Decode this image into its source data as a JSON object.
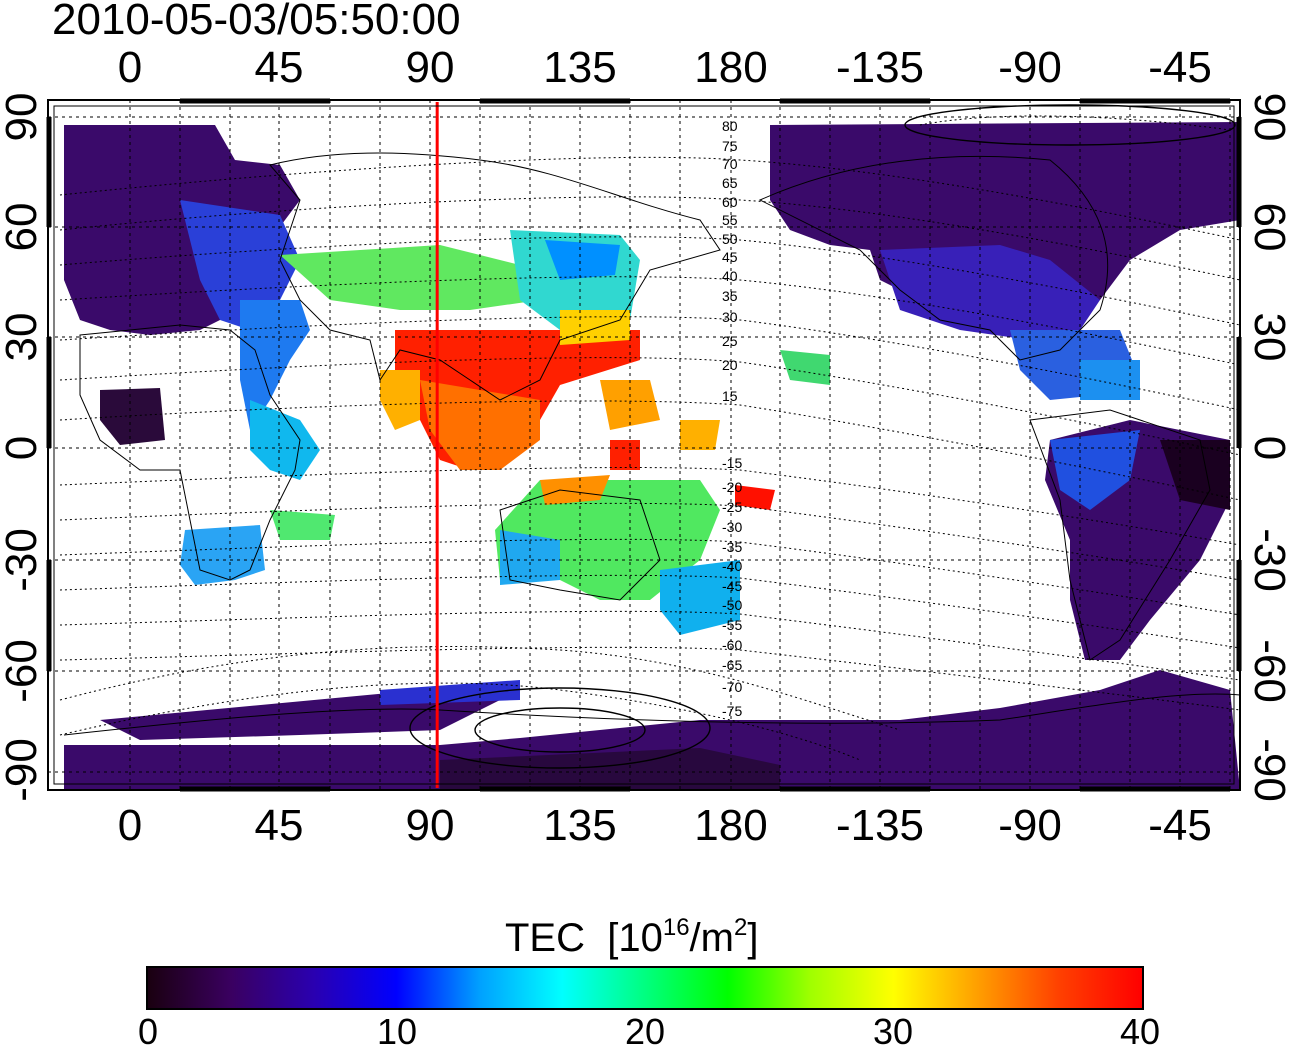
{
  "timestamp": "2010-05-03/05:50:00",
  "map": {
    "lon_ticks": [
      "0",
      "45",
      "90",
      "135",
      "180",
      "-135",
      "-90",
      "-45"
    ],
    "lat_ticks": [
      "90",
      "60",
      "30",
      "0",
      "-30",
      "-60",
      "-90"
    ],
    "contour_labels": [
      "80",
      "75",
      "70",
      "65",
      "60",
      "55",
      "50",
      "45",
      "40",
      "35",
      "30",
      "25",
      "20",
      "15",
      "-15",
      "-20",
      "-25",
      "-30",
      "-35",
      "-40",
      "-45",
      "-50",
      "-55",
      "-60",
      "-65",
      "-70",
      "-75"
    ],
    "terminator_longitude": 92,
    "colors": {
      "terminator": "#ff0000",
      "grid": "#000000",
      "coast": "#000000"
    }
  },
  "colorbar": {
    "title": "TEC",
    "unit_open": "[10",
    "unit_exp": "16",
    "unit_mid": "/m",
    "unit_exp2": "2",
    "unit_close": "]",
    "tick_labels": [
      "0",
      "10",
      "20",
      "30",
      "40"
    ],
    "min": 0,
    "max": 40,
    "stops": [
      "#1a0010",
      "#3a0060",
      "#2a00b0",
      "#0000ff",
      "#00a0ff",
      "#00ffff",
      "#00ff80",
      "#00ff00",
      "#a0ff00",
      "#ffff00",
      "#ffa000",
      "#ff4000",
      "#ff0000"
    ]
  }
}
